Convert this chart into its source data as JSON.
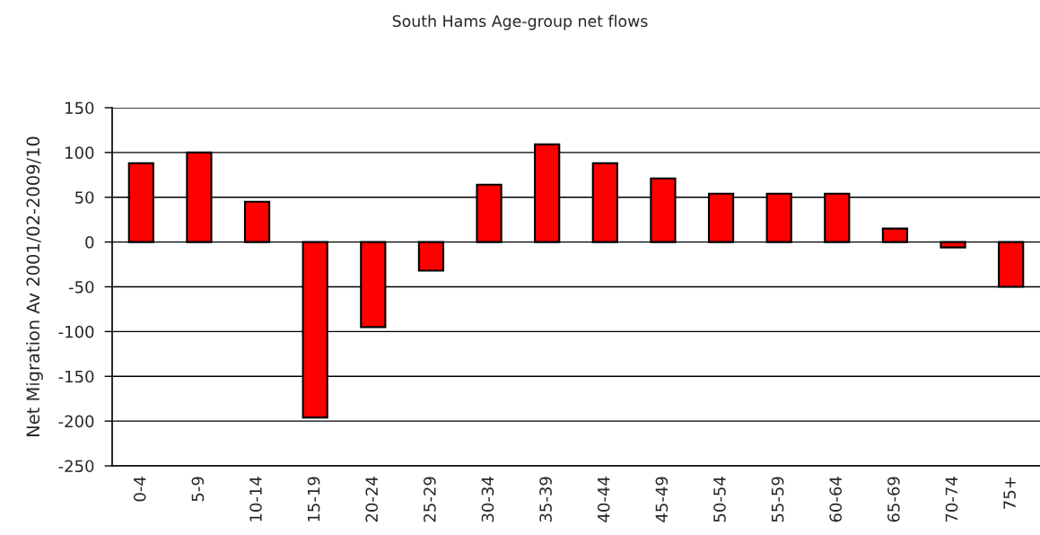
{
  "chart_data": {
    "type": "bar",
    "title": "South Hams Age-group net flows",
    "ylabel": "Net Migration Av 2001/02-2009/10",
    "categories": [
      "0-4",
      "5-9",
      "10-14",
      "15-19",
      "20-24",
      "25-29",
      "30-34",
      "35-39",
      "40-44",
      "45-49",
      "50-54",
      "55-59",
      "60-64",
      "65-69",
      "70-74",
      "75+"
    ],
    "values": [
      88,
      100,
      45,
      -196,
      -95,
      -32,
      64,
      109,
      88,
      71,
      54,
      54,
      54,
      15,
      -6,
      -50
    ],
    "color": "#ff0000",
    "ylim": [
      -250,
      150
    ],
    "yticks": [
      -250,
      -200,
      -150,
      -100,
      -50,
      0,
      50,
      100,
      150
    ],
    "grid": "y"
  }
}
